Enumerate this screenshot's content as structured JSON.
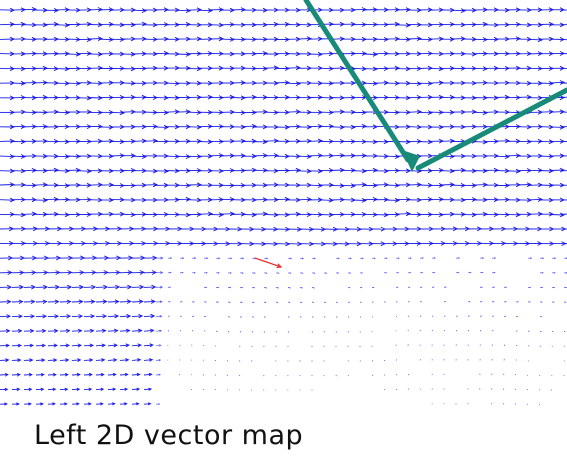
{
  "caption": "Left 2D vector map",
  "colors": {
    "vector_color": "#1a1ae6",
    "highlight_vector_color": "#e63030",
    "pointer_color": "#178a7a",
    "background": "#ffffff"
  },
  "field": {
    "rows": 28,
    "uniform_rows": 15,
    "vortex_centers": [
      "lower-left-center",
      "lower-center-right",
      "lower-right"
    ]
  },
  "pointers": {
    "count": 2,
    "converge_to": "field-center",
    "color_name": "teal"
  }
}
